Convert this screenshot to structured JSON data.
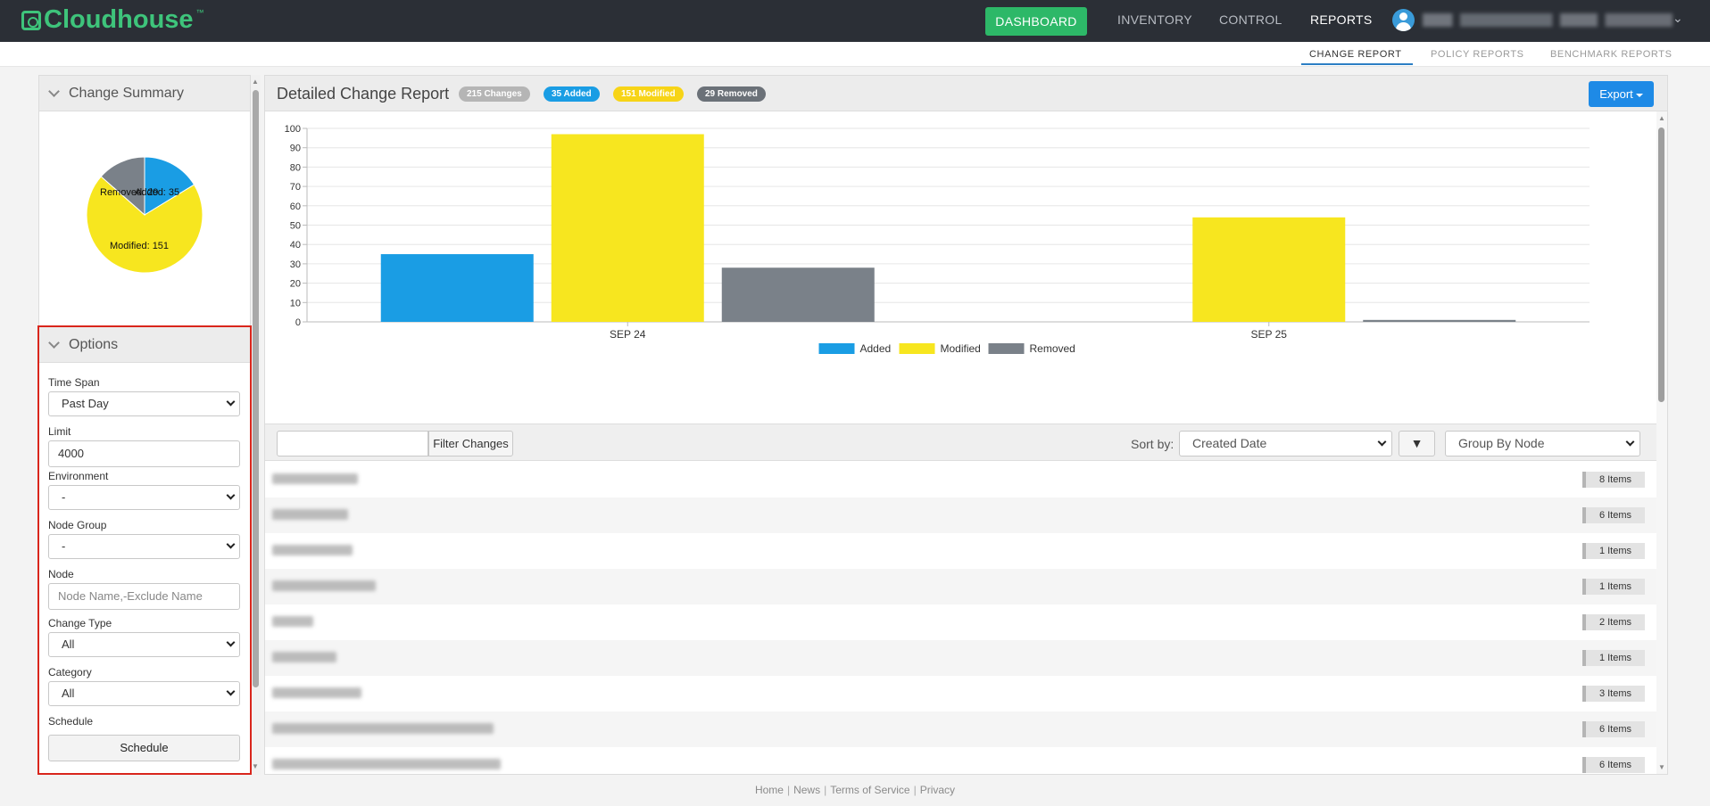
{
  "app": {
    "logo_text": "Cloudhouse",
    "logo_tm": "™"
  },
  "nav": {
    "dashboard": "DASHBOARD",
    "inventory": "INVENTORY",
    "control": "CONTROL",
    "reports": "REPORTS"
  },
  "subnav": {
    "change_report": "CHANGE REPORT",
    "policy_reports": "POLICY REPORTS",
    "benchmark_reports": "BENCHMARK REPORTS"
  },
  "summary": {
    "title": "Change Summary",
    "pie": [
      {
        "label": "Added",
        "value": 35,
        "color": "#1a9de4"
      },
      {
        "label": "Modified",
        "value": 151,
        "color": "#f7e61f"
      },
      {
        "label": "Removed",
        "value": 29,
        "color": "#7a8189"
      }
    ],
    "pie_labels": {
      "added": "Added: 35",
      "modified": "Modified: 151",
      "removed": "Removed: 29"
    }
  },
  "options": {
    "title": "Options",
    "time_span_label": "Time Span",
    "time_span_value": "Past Day",
    "limit_label": "Limit",
    "limit_value": "4000",
    "environment_label": "Environment",
    "environment_value": "-",
    "node_group_label": "Node Group",
    "node_group_value": "-",
    "node_label": "Node",
    "node_placeholder": "Node Name,-Exclude Name",
    "change_type_label": "Change Type",
    "change_type_value": "All",
    "category_label": "Category",
    "category_value": "All",
    "schedule_label": "Schedule",
    "schedule_button": "Schedule"
  },
  "report": {
    "title": "Detailed Change Report",
    "badges": {
      "changes": "215 Changes",
      "added": "35 Added",
      "modified": "151 Modified",
      "removed": "29 Removed"
    },
    "export": "Export"
  },
  "chart_data": {
    "type": "bar",
    "categories": [
      "SEP 24",
      "SEP 25"
    ],
    "series": [
      {
        "name": "Added",
        "values": [
          35,
          0
        ],
        "color": "#1a9de4"
      },
      {
        "name": "Modified",
        "values": [
          97,
          54
        ],
        "color": "#f7e61f"
      },
      {
        "name": "Removed",
        "values": [
          28,
          1
        ],
        "color": "#7a8189"
      }
    ],
    "ylim": [
      0,
      100
    ],
    "yticks": [
      0,
      10,
      20,
      30,
      40,
      50,
      60,
      70,
      80,
      90,
      100
    ],
    "grid": true,
    "legend": "bottom"
  },
  "filter": {
    "button": "Filter Changes",
    "sort_label": "Sort by:",
    "sort_value": "Created Date",
    "sort_dir": "▼",
    "group_value": "Group By Node"
  },
  "rows": [
    {
      "count": "8 Items"
    },
    {
      "count": "6 Items"
    },
    {
      "count": "1 Items"
    },
    {
      "count": "1 Items"
    },
    {
      "count": "2 Items"
    },
    {
      "count": "1 Items"
    },
    {
      "count": "3 Items"
    },
    {
      "count": "6 Items"
    },
    {
      "count": "6 Items"
    }
  ],
  "footer": {
    "home": "Home",
    "news": "News",
    "terms": "Terms of Service",
    "privacy": "Privacy"
  }
}
